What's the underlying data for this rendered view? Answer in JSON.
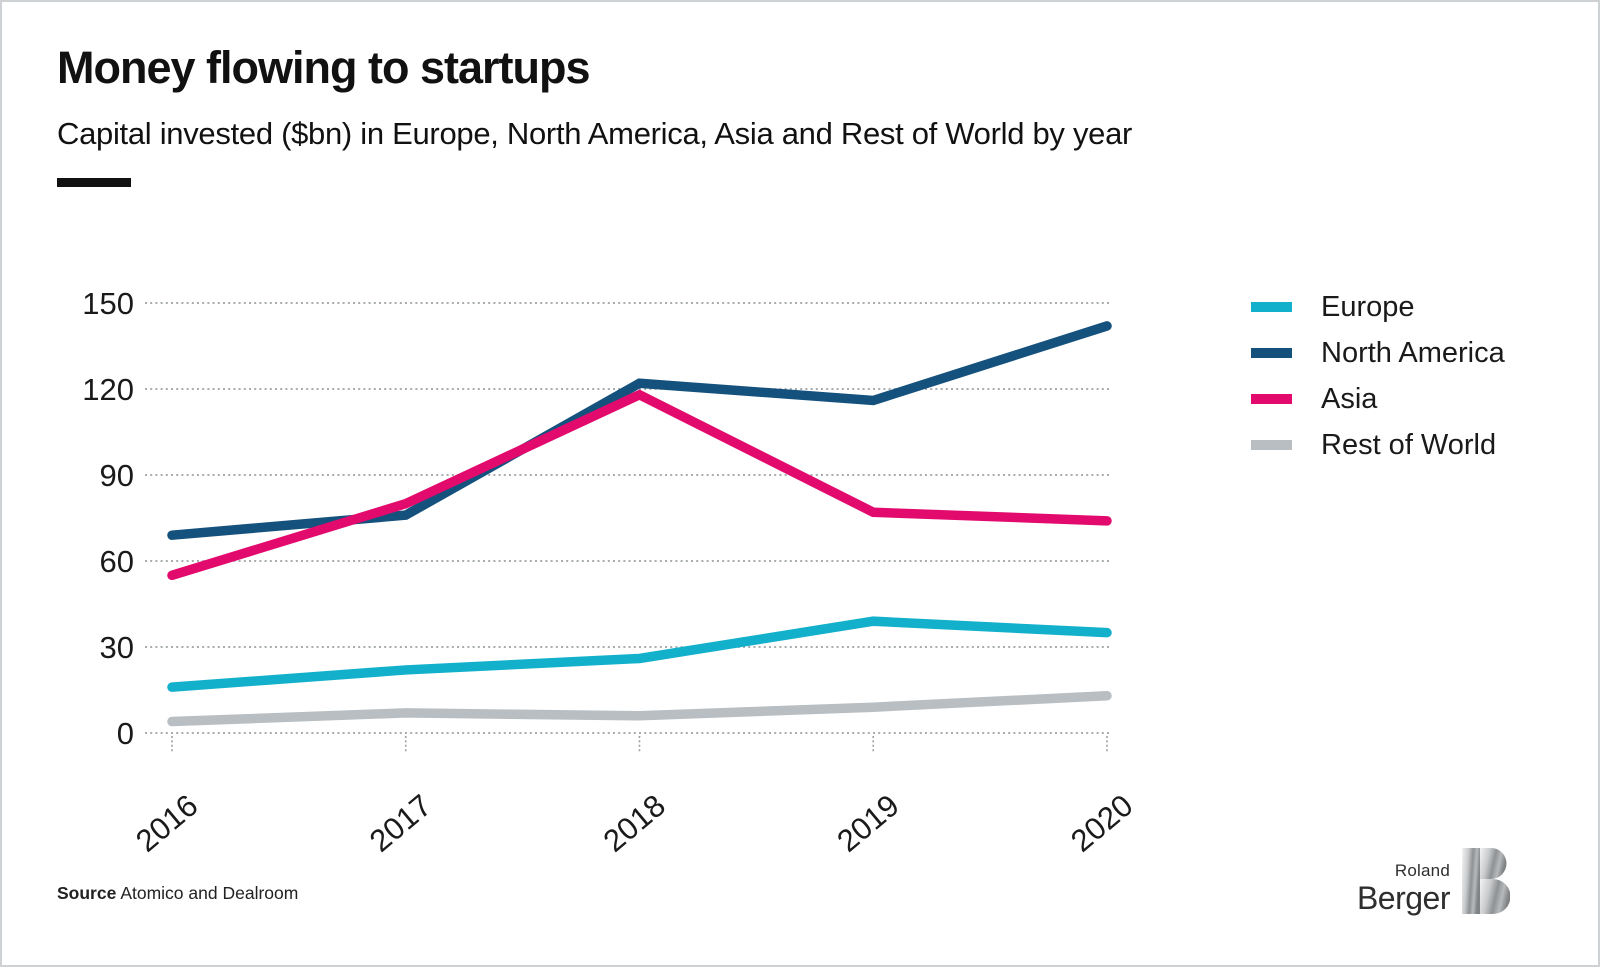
{
  "header": {
    "title": "Money flowing to startups",
    "subtitle": "Capital invested ($bn) in Europe, North America, Asia and Rest of World by year"
  },
  "chart_data": {
    "type": "line",
    "x": [
      "2016",
      "2017",
      "2018",
      "2019",
      "2020"
    ],
    "series": [
      {
        "name": "Europe",
        "color": "#12b0cb",
        "values": [
          16,
          22,
          26,
          39,
          35
        ]
      },
      {
        "name": "North America",
        "color": "#15517d",
        "values": [
          69,
          76,
          122,
          116,
          142
        ]
      },
      {
        "name": "Asia",
        "color": "#e30a6e",
        "values": [
          55,
          80,
          118,
          77,
          74
        ]
      },
      {
        "name": "Rest of World",
        "color": "#b8bec2",
        "values": [
          4,
          7,
          6,
          9,
          13
        ]
      }
    ],
    "ylim": [
      0,
      150
    ],
    "y_ticks": [
      0,
      30,
      60,
      90,
      120,
      150
    ],
    "xlabel": "",
    "ylabel": "",
    "grid": "horizontal-dashed",
    "legend_position": "top-right",
    "gridline_color": "#9aa0a4",
    "tick_label_color": "#1a1a1a"
  },
  "footer": {
    "source_label": "Source",
    "source_text": "Atomico and Dealroom",
    "logo_top": "Roland",
    "logo_bottom": "Berger"
  }
}
